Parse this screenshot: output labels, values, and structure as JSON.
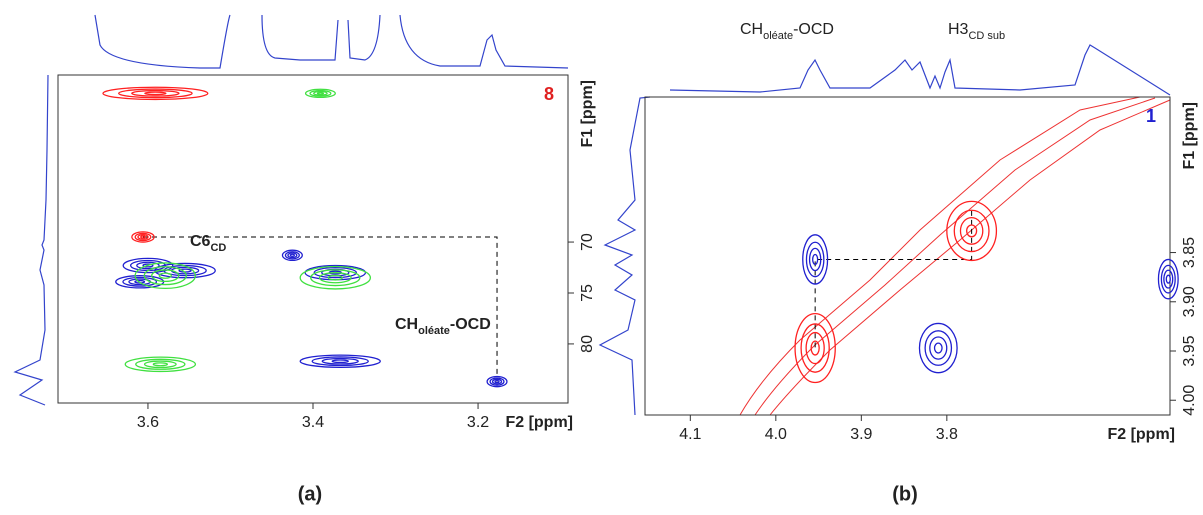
{
  "chart_data": [
    {
      "type": "nmr2d",
      "panel_label": "(a)",
      "sample_label": "8",
      "sample_color": "#e02020",
      "xlabel": "F2 [ppm]",
      "ylabel": "F1 [ppm]",
      "xlim": [
        3.709,
        3.091
      ],
      "ylim": [
        53.6,
        85.8
      ],
      "xticks": [
        3.6,
        3.4,
        3.2
      ],
      "yticks": [
        70,
        75,
        80
      ],
      "annotations": [
        [
          "C6",
          "CD"
        ],
        [
          "CH",
          "oléate",
          "-OCD"
        ]
      ],
      "peaks": [
        {
          "color": "#ff2020",
          "x": 3.591,
          "y": 55.4,
          "w": 0.127,
          "h": 1.2
        },
        {
          "color": "#ff2020",
          "x": 3.606,
          "y": 69.5,
          "w": 0.027,
          "h": 1.0
        },
        {
          "color": "#2020d0",
          "x": 3.6,
          "y": 72.3,
          "w": 0.06,
          "h": 1.4
        },
        {
          "color": "#2020d0",
          "x": 3.555,
          "y": 72.8,
          "w": 0.073,
          "h": 1.4
        },
        {
          "color": "#2020d0",
          "x": 3.61,
          "y": 73.9,
          "w": 0.058,
          "h": 1.2
        },
        {
          "color": "#40e040",
          "x": 3.579,
          "y": 73.3,
          "w": 0.073,
          "h": 2.5
        },
        {
          "color": "#2020d0",
          "x": 3.425,
          "y": 71.3,
          "w": 0.024,
          "h": 1.0
        },
        {
          "color": "#2020d0",
          "x": 3.373,
          "y": 73.0,
          "w": 0.073,
          "h": 1.4
        },
        {
          "color": "#40e040",
          "x": 3.373,
          "y": 73.5,
          "w": 0.085,
          "h": 2.2
        },
        {
          "color": "#40e040",
          "x": 3.391,
          "y": 55.4,
          "w": 0.036,
          "h": 0.8
        },
        {
          "color": "#40e040",
          "x": 3.585,
          "y": 82.0,
          "w": 0.085,
          "h": 1.4
        },
        {
          "color": "#2020d0",
          "x": 3.367,
          "y": 81.7,
          "w": 0.097,
          "h": 1.2
        },
        {
          "color": "#2020d0",
          "x": 3.177,
          "y": 83.7,
          "w": 0.024,
          "h": 1.0
        }
      ]
    },
    {
      "type": "nmr2d",
      "panel_label": "(b)",
      "sample_label": "1",
      "sample_color": "#2020d0",
      "xlabel": "F2 [ppm]",
      "ylabel": "F1 [ppm]",
      "xlim": [
        4.153,
        3.539
      ],
      "ylim": [
        3.692,
        4.015
      ],
      "xticks": [
        4.1,
        {
          "value": 4,
          "label": "4.0"
        },
        3.9,
        3.8
      ],
      "yticks": [
        3.85,
        {
          "value": 3.9,
          "label": "3.90"
        },
        3.95,
        {
          "value": 4,
          "label": "4.00"
        }
      ],
      "annotations": [
        [
          "CH",
          "oléate",
          "-OCD"
        ],
        [
          "H3",
          "CD sub"
        ]
      ],
      "peaks": [
        {
          "color": "#2020d0",
          "x": 3.954,
          "y": 3.857,
          "w": 0.029,
          "h": 0.05
        },
        {
          "color": "#ff2020",
          "x": 3.954,
          "y": 3.947,
          "w": 0.047,
          "h": 0.07
        },
        {
          "color": "#ff2020",
          "x": 3.771,
          "y": 3.828,
          "w": 0.058,
          "h": 0.06
        },
        {
          "color": "#2020d0",
          "x": 3.81,
          "y": 3.947,
          "w": 0.044,
          "h": 0.05
        },
        {
          "color": "#2020d0",
          "x": 3.541,
          "y": 3.877,
          "w": 0.023,
          "h": 0.04
        }
      ]
    }
  ]
}
